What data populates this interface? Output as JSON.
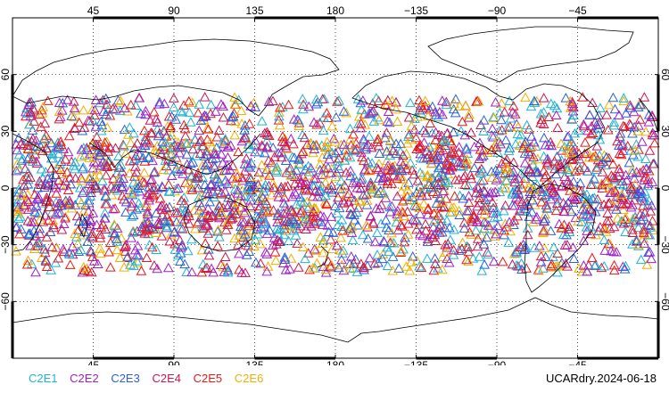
{
  "map": {
    "projection": "cylindrical equidistant",
    "lon_range": [
      0,
      360
    ],
    "lat_range": [
      -90,
      90
    ],
    "grid": true,
    "grid_style": "dotted",
    "lon_ticks": [
      {
        "value": 45,
        "label": "45"
      },
      {
        "value": 90,
        "label": "90"
      },
      {
        "value": 135,
        "label": "135"
      },
      {
        "value": 180,
        "label": "180"
      },
      {
        "value": 225,
        "label": "−135"
      },
      {
        "value": 270,
        "label": "−90"
      },
      {
        "value": 315,
        "label": "−45"
      }
    ],
    "lat_ticks": [
      {
        "value": 60,
        "label": "60"
      },
      {
        "value": 30,
        "label": "30"
      },
      {
        "value": 0,
        "label": "0"
      },
      {
        "value": -30,
        "label": "−30"
      },
      {
        "value": -60,
        "label": "−60"
      }
    ],
    "marker": "open-triangle",
    "observation_lat_band": [
      -45,
      48
    ]
  },
  "legend": {
    "items": [
      {
        "label": "C2E1",
        "color": "#1fb3d6"
      },
      {
        "label": "C2E2",
        "color": "#a020c8"
      },
      {
        "label": "C2E3",
        "color": "#2a60d8"
      },
      {
        "label": "C2E4",
        "color": "#c81850"
      },
      {
        "label": "C2E5",
        "color": "#e81818"
      },
      {
        "label": "C2E6",
        "color": "#f0b000"
      }
    ]
  },
  "run_label": "UCARdry.2024-06-18"
}
